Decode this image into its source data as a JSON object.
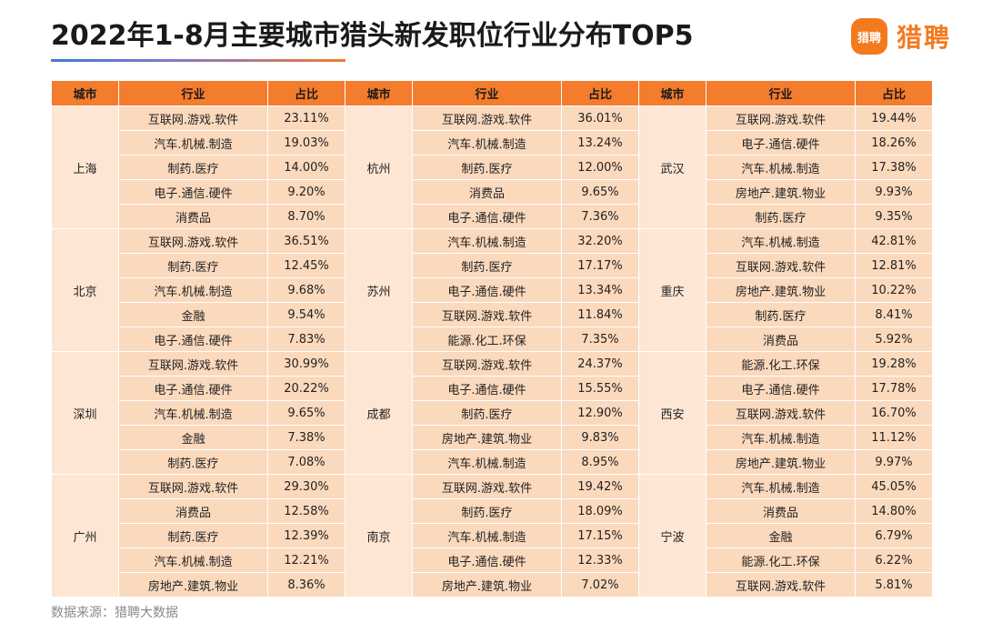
{
  "header": {
    "title": "2022年1-8月主要城市猎头新发职位行业分布TOP5",
    "logo_icon_text": "猎聘",
    "logo_text": "猎聘"
  },
  "colors": {
    "header_bg": "#f47c2d",
    "cell_bg": "#fbd9bd",
    "brand": "#f47a1f"
  },
  "table": {
    "columns": [
      "城市",
      "行业",
      "占比"
    ],
    "groups": [
      [
        {
          "city": "上海",
          "rows": [
            [
              "互联网.游戏.软件",
              "23.11%"
            ],
            [
              "汽车.机械.制造",
              "19.03%"
            ],
            [
              "制药.医疗",
              "14.00%"
            ],
            [
              "电子.通信.硬件",
              "9.20%"
            ],
            [
              "消费品",
              "8.70%"
            ]
          ]
        },
        {
          "city": "北京",
          "rows": [
            [
              "互联网.游戏.软件",
              "36.51%"
            ],
            [
              "制药.医疗",
              "12.45%"
            ],
            [
              "汽车.机械.制造",
              "9.68%"
            ],
            [
              "金融",
              "9.54%"
            ],
            [
              "电子.通信.硬件",
              "7.83%"
            ]
          ]
        },
        {
          "city": "深圳",
          "rows": [
            [
              "互联网.游戏.软件",
              "30.99%"
            ],
            [
              "电子.通信.硬件",
              "20.22%"
            ],
            [
              "汽车.机械.制造",
              "9.65%"
            ],
            [
              "金融",
              "7.38%"
            ],
            [
              "制药.医疗",
              "7.08%"
            ]
          ]
        },
        {
          "city": "广州",
          "rows": [
            [
              "互联网.游戏.软件",
              "29.30%"
            ],
            [
              "消费品",
              "12.58%"
            ],
            [
              "制药.医疗",
              "12.39%"
            ],
            [
              "汽车.机械.制造",
              "12.21%"
            ],
            [
              "房地产.建筑.物业",
              "8.36%"
            ]
          ]
        }
      ],
      [
        {
          "city": "杭州",
          "rows": [
            [
              "互联网.游戏.软件",
              "36.01%"
            ],
            [
              "汽车.机械.制造",
              "13.24%"
            ],
            [
              "制药.医疗",
              "12.00%"
            ],
            [
              "消费品",
              "9.65%"
            ],
            [
              "电子.通信.硬件",
              "7.36%"
            ]
          ]
        },
        {
          "city": "苏州",
          "rows": [
            [
              "汽车.机械.制造",
              "32.20%"
            ],
            [
              "制药.医疗",
              "17.17%"
            ],
            [
              "电子.通信.硬件",
              "13.34%"
            ],
            [
              "互联网.游戏.软件",
              "11.84%"
            ],
            [
              "能源.化工.环保",
              "7.35%"
            ]
          ]
        },
        {
          "city": "成都",
          "rows": [
            [
              "互联网.游戏.软件",
              "24.37%"
            ],
            [
              "电子.通信.硬件",
              "15.55%"
            ],
            [
              "制药.医疗",
              "12.90%"
            ],
            [
              "房地产.建筑.物业",
              "9.83%"
            ],
            [
              "汽车.机械.制造",
              "8.95%"
            ]
          ]
        },
        {
          "city": "南京",
          "rows": [
            [
              "互联网.游戏.软件",
              "19.42%"
            ],
            [
              "制药.医疗",
              "18.09%"
            ],
            [
              "汽车.机械.制造",
              "17.15%"
            ],
            [
              "电子.通信.硬件",
              "12.33%"
            ],
            [
              "房地产.建筑.物业",
              "7.02%"
            ]
          ]
        }
      ],
      [
        {
          "city": "武汉",
          "rows": [
            [
              "互联网.游戏.软件",
              "19.44%"
            ],
            [
              "电子.通信.硬件",
              "18.26%"
            ],
            [
              "汽车.机械.制造",
              "17.38%"
            ],
            [
              "房地产.建筑.物业",
              "9.93%"
            ],
            [
              "制药.医疗",
              "9.35%"
            ]
          ]
        },
        {
          "city": "重庆",
          "rows": [
            [
              "汽车.机械.制造",
              "42.81%"
            ],
            [
              "互联网.游戏.软件",
              "12.81%"
            ],
            [
              "房地产.建筑.物业",
              "10.22%"
            ],
            [
              "制药.医疗",
              "8.41%"
            ],
            [
              "消费品",
              "5.92%"
            ]
          ]
        },
        {
          "city": "西安",
          "rows": [
            [
              "能源.化工.环保",
              "19.28%"
            ],
            [
              "电子.通信.硬件",
              "17.78%"
            ],
            [
              "互联网.游戏.软件",
              "16.70%"
            ],
            [
              "汽车.机械.制造",
              "11.12%"
            ],
            [
              "房地产.建筑.物业",
              "9.97%"
            ]
          ]
        },
        {
          "city": "宁波",
          "rows": [
            [
              "汽车.机械.制造",
              "45.05%"
            ],
            [
              "消费品",
              "14.80%"
            ],
            [
              "金融",
              "6.79%"
            ],
            [
              "能源.化工.环保",
              "6.22%"
            ],
            [
              "互联网.游戏.软件",
              "5.81%"
            ]
          ]
        }
      ]
    ]
  },
  "chart_data": {
    "type": "table",
    "title": "2022年1-8月主要城市猎头新发职位行业分布TOP5",
    "columns": [
      "城市",
      "行业",
      "占比"
    ]
  },
  "footer": {
    "source": "数据来源：猎聘大数据"
  }
}
